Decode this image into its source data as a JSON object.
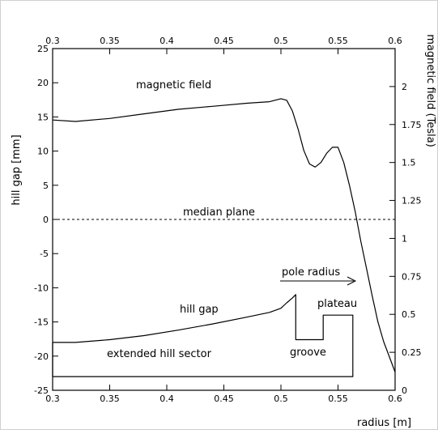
{
  "chart_data": {
    "type": "line",
    "title": "",
    "xlabel": "radius [m]",
    "ylabel": "hill gap [mm]",
    "y2label": "magnetic field (Tesla)",
    "xlim": [
      0.3,
      0.6
    ],
    "ylim": [
      -25,
      25
    ],
    "y2lim": [
      0,
      2.25
    ],
    "x_ticks": [
      "0.3",
      "0.35",
      "0.4",
      "0.45",
      "0.5",
      "0.55",
      "0.6"
    ],
    "y_ticks": [
      "-25",
      "-20",
      "-15",
      "-10",
      "-5",
      "0",
      "5",
      "10",
      "15",
      "20",
      "25"
    ],
    "y2_ticks": [
      "0",
      "0.25",
      "0.5",
      "0.75",
      "1",
      "1.25",
      "1.5",
      "1.75",
      "2"
    ],
    "grid": false,
    "series": [
      {
        "axis": "right",
        "x": [
          0.3,
          0.32,
          0.35,
          0.38,
          0.41,
          0.44,
          0.47,
          0.49,
          0.5,
          0.505,
          0.51,
          0.515,
          0.52,
          0.525,
          0.53,
          0.535,
          0.54,
          0.545,
          0.55,
          0.555,
          0.56,
          0.565,
          0.57,
          0.575,
          0.58,
          0.585,
          0.59,
          0.6
        ],
        "y": [
          1.78,
          1.77,
          1.79,
          1.82,
          1.85,
          1.87,
          1.89,
          1.9,
          1.92,
          1.91,
          1.84,
          1.72,
          1.58,
          1.49,
          1.47,
          1.5,
          1.56,
          1.6,
          1.6,
          1.5,
          1.35,
          1.18,
          0.98,
          0.8,
          0.62,
          0.45,
          0.32,
          0.12
        ]
      },
      {
        "axis": "left",
        "x": [
          0.3,
          0.32,
          0.35,
          0.38,
          0.41,
          0.44,
          0.47,
          0.49,
          0.5,
          0.505,
          0.51,
          0.513,
          0.513,
          0.537,
          0.537,
          0.563,
          0.563,
          0.3,
          0.3
        ],
        "y": [
          -18.0,
          -18.0,
          -17.6,
          -17.0,
          -16.2,
          -15.3,
          -14.3,
          -13.6,
          -13.0,
          -12.2,
          -11.5,
          -11.0,
          -17.6,
          -17.6,
          -14.0,
          -14.0,
          -23.0,
          -23.0,
          -18.0
        ]
      }
    ],
    "reference_lines": [
      {
        "axis": "left",
        "y": 0,
        "style": "dashed",
        "label": "median plane"
      }
    ],
    "annotations": [
      {
        "id": "magnetic_field",
        "text": "magnetic field"
      },
      {
        "id": "median_plane",
        "text": "median plane"
      },
      {
        "id": "pole_radius",
        "text": "pole radius",
        "arrow": true
      },
      {
        "id": "hill_gap",
        "text": "hill gap"
      },
      {
        "id": "plateau",
        "text": "plateau"
      },
      {
        "id": "groove",
        "text": "groove"
      },
      {
        "id": "extended_hill_sector",
        "text": "extended hill sector"
      }
    ]
  }
}
